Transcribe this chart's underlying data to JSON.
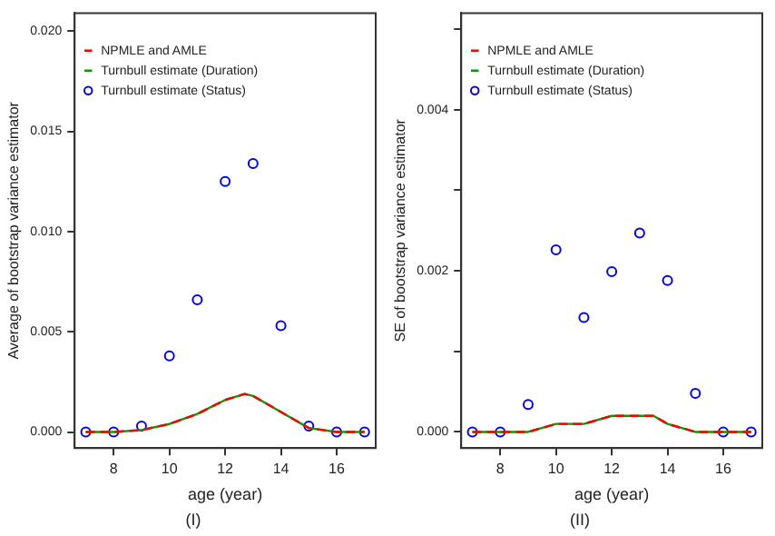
{
  "chart_data": [
    {
      "type": "scatter",
      "xlabel": "age (year)",
      "ylabel": "Average of bootstrap variance estimator",
      "annotations": [
        "(I)"
      ],
      "legend": "top left",
      "grid": false,
      "xlim": [
        6.6,
        17.4
      ],
      "xticks": [
        8,
        10,
        12,
        14,
        16
      ],
      "ylim": [
        -0.0008,
        0.0209
      ],
      "yticks": [
        {
          "value": 0,
          "label": "0.000"
        },
        {
          "value": 0.005,
          "label": "0.005"
        },
        {
          "value": 0.01,
          "label": "0.010"
        },
        {
          "value": 0.015,
          "label": "0.015"
        },
        {
          "value": 0.02,
          "label": "0.020"
        }
      ],
      "series": [
        {
          "name": "NPMLE and AMLE",
          "type": "line",
          "color": "#ff0000",
          "line_style": "dashed",
          "marker": "none",
          "x": [
            7,
            8,
            9,
            10,
            11,
            12,
            12.7,
            13,
            14,
            15,
            16,
            17
          ],
          "values": [
            0,
            0,
            0.0001,
            0.0004,
            0.0009,
            0.0016,
            0.0019,
            0.0018,
            0.001,
            0.0002,
            0,
            0
          ]
        },
        {
          "name": "Turnbull estimate (Duration)",
          "type": "line",
          "color": "#00a000",
          "line_style": "solid",
          "marker": "none",
          "x": [
            7,
            8,
            9,
            10,
            11,
            12,
            12.7,
            13,
            14,
            15,
            16,
            17
          ],
          "values": [
            0,
            0,
            0.0001,
            0.0004,
            0.0009,
            0.0016,
            0.0019,
            0.0018,
            0.001,
            0.0002,
            0,
            0
          ]
        },
        {
          "name": "Turnbull estimate (Status)",
          "type": "scatter",
          "color": "#0000ff",
          "marker": "circle",
          "x": [
            7,
            8,
            9,
            10,
            11,
            12,
            13,
            14,
            15,
            16,
            17
          ],
          "values": [
            0,
            0,
            0.0003,
            0.0038,
            0.0066,
            0.0125,
            0.0134,
            0.0053,
            0.0003,
            0,
            0
          ]
        }
      ]
    },
    {
      "type": "scatter",
      "xlabel": "age (year)",
      "ylabel": "SE of bootstrap variance estimator",
      "annotations": [
        "(II)"
      ],
      "legend": "top left",
      "grid": false,
      "xlim": [
        6.6,
        17.4
      ],
      "xticks": [
        8,
        10,
        12,
        14,
        16
      ],
      "ylim": [
        -0.0002,
        0.0052
      ],
      "yticks": [
        {
          "value": 0,
          "label": "0.000"
        },
        {
          "value": 0.001,
          "label": null
        },
        {
          "value": 0.002,
          "label": "0.002"
        },
        {
          "value": 0.003,
          "label": null
        },
        {
          "value": 0.004,
          "label": "0.004"
        },
        {
          "value": 0.005,
          "label": null
        }
      ],
      "series": [
        {
          "name": "NPMLE and AMLE",
          "type": "line",
          "color": "#ff0000",
          "line_style": "dashed",
          "marker": "none",
          "x": [
            7,
            8,
            9,
            10,
            11,
            12,
            13,
            13.5,
            14,
            15,
            16,
            17
          ],
          "values": [
            0,
            0,
            0,
            0.0001,
            0.0001,
            0.0002,
            0.0002,
            0.0002,
            0.0001,
            0,
            0,
            0
          ]
        },
        {
          "name": "Turnbull estimate (Duration)",
          "type": "line",
          "color": "#00a000",
          "line_style": "solid",
          "marker": "none",
          "x": [
            7,
            8,
            9,
            10,
            11,
            12,
            13,
            13.5,
            14,
            15,
            16,
            17
          ],
          "values": [
            0,
            0,
            0,
            0.0001,
            0.0001,
            0.0002,
            0.0002,
            0.0002,
            0.0001,
            0,
            0,
            0
          ]
        },
        {
          "name": "Turnbull estimate (Status)",
          "type": "scatter",
          "color": "#0000ff",
          "marker": "circle",
          "x": [
            7,
            8,
            9,
            10,
            11,
            12,
            13,
            14,
            15,
            16,
            17
          ],
          "values": [
            0,
            0,
            0.00034,
            0.00226,
            0.00142,
            0.00199,
            0.00247,
            0.00188,
            0.00048,
            0,
            0
          ]
        }
      ]
    }
  ]
}
